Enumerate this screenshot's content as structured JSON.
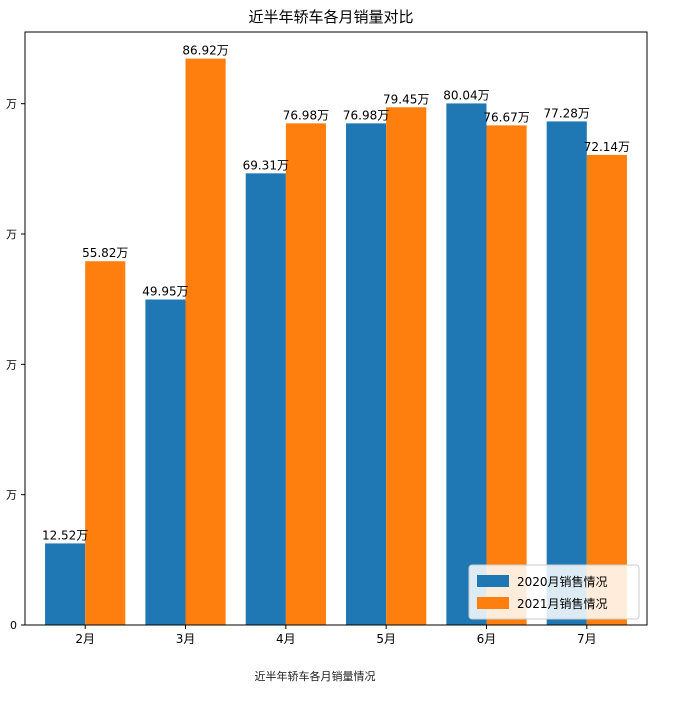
{
  "chart_data": {
    "type": "bar",
    "title": "近半年轿车各月销量对比",
    "categories": [
      "2月",
      "3月",
      "4月",
      "5月",
      "6月",
      "7月"
    ],
    "series": [
      {
        "name": "2020月销售情况",
        "color": "#1f77b4",
        "values": [
          12.52,
          49.95,
          69.31,
          76.98,
          80.04,
          77.28
        ],
        "labels": [
          "12.52万",
          "49.95万",
          "69.31万",
          "76.98万",
          "80.04万",
          "77.28万"
        ]
      },
      {
        "name": "2021月销售情况",
        "color": "#ff7f0e",
        "values": [
          55.82,
          86.92,
          76.98,
          79.45,
          76.67,
          72.14
        ],
        "labels": [
          "55.82万",
          "86.92万",
          "76.98万",
          "79.45万",
          "76.67万",
          "72.14万"
        ]
      }
    ],
    "ylim": [
      0,
      91
    ],
    "yticks": [
      0,
      20,
      40,
      60,
      80
    ],
    "ytick_labels": [
      "0",
      "万",
      "万",
      "万",
      "万"
    ],
    "legend_position": "lower-right",
    "grid": false
  },
  "caption": "近半年轿车各月销量情况"
}
